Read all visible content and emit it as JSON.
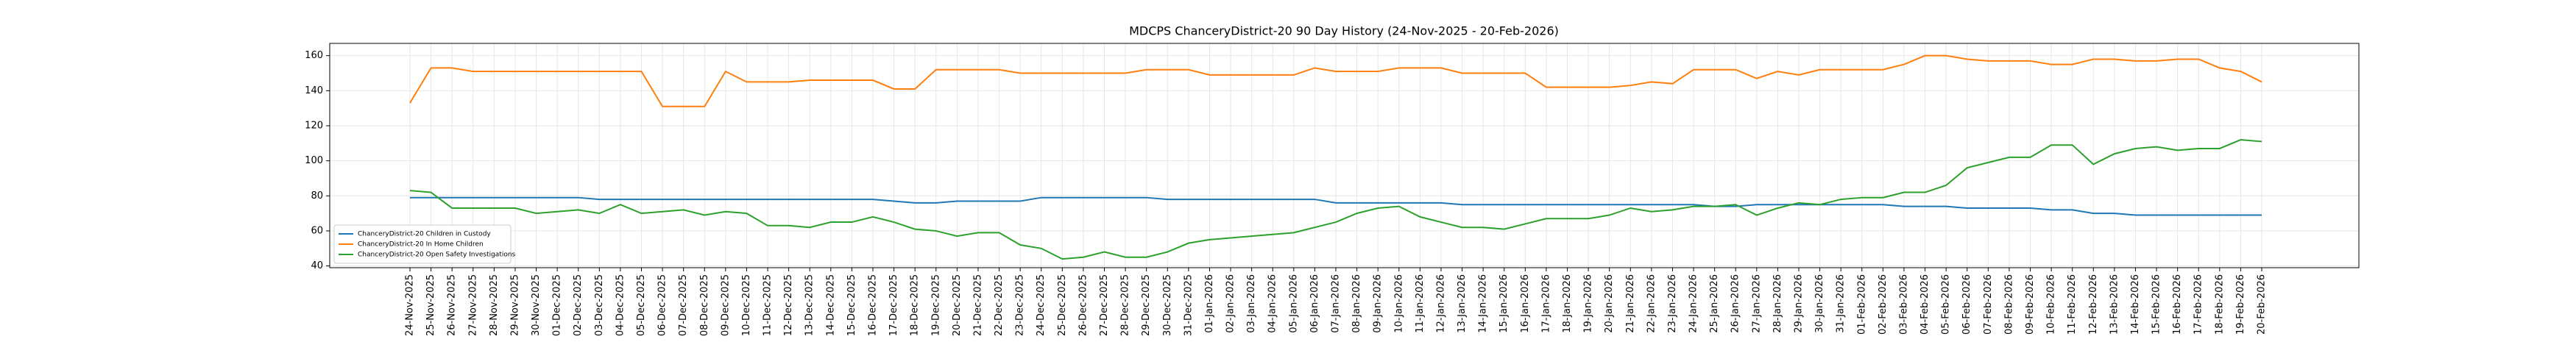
{
  "chart_data": {
    "type": "line",
    "title": "MDCPS ChanceryDistrict-20 90 Day History (24-Nov-2025 - 20-Feb-2026)",
    "categories": [
      "24-Nov-2025",
      "25-Nov-2025",
      "26-Nov-2025",
      "27-Nov-2025",
      "28-Nov-2025",
      "29-Nov-2025",
      "30-Nov-2025",
      "01-Dec-2025",
      "02-Dec-2025",
      "03-Dec-2025",
      "04-Dec-2025",
      "05-Dec-2025",
      "06-Dec-2025",
      "07-Dec-2025",
      "08-Dec-2025",
      "09-Dec-2025",
      "10-Dec-2025",
      "11-Dec-2025",
      "12-Dec-2025",
      "13-Dec-2025",
      "14-Dec-2025",
      "15-Dec-2025",
      "16-Dec-2025",
      "17-Dec-2025",
      "18-Dec-2025",
      "19-Dec-2025",
      "20-Dec-2025",
      "21-Dec-2025",
      "22-Dec-2025",
      "23-Dec-2025",
      "24-Dec-2025",
      "25-Dec-2025",
      "26-Dec-2025",
      "27-Dec-2025",
      "28-Dec-2025",
      "29-Dec-2025",
      "30-Dec-2025",
      "31-Dec-2025",
      "01-Jan-2026",
      "02-Jan-2026",
      "03-Jan-2026",
      "04-Jan-2026",
      "05-Jan-2026",
      "06-Jan-2026",
      "07-Jan-2026",
      "08-Jan-2026",
      "09-Jan-2026",
      "10-Jan-2026",
      "11-Jan-2026",
      "12-Jan-2026",
      "13-Jan-2026",
      "14-Jan-2026",
      "15-Jan-2026",
      "16-Jan-2026",
      "17-Jan-2026",
      "18-Jan-2026",
      "19-Jan-2026",
      "20-Jan-2026",
      "21-Jan-2026",
      "22-Jan-2026",
      "23-Jan-2026",
      "24-Jan-2026",
      "25-Jan-2026",
      "26-Jan-2026",
      "27-Jan-2026",
      "28-Jan-2026",
      "29-Jan-2026",
      "30-Jan-2026",
      "31-Jan-2026",
      "01-Feb-2026",
      "02-Feb-2026",
      "03-Feb-2026",
      "04-Feb-2026",
      "05-Feb-2026",
      "06-Feb-2026",
      "07-Feb-2026",
      "08-Feb-2026",
      "09-Feb-2026",
      "10-Feb-2026",
      "11-Feb-2026",
      "12-Feb-2026",
      "13-Feb-2026",
      "14-Feb-2026",
      "15-Feb-2026",
      "16-Feb-2026",
      "17-Feb-2026",
      "18-Feb-2026",
      "19-Feb-2026",
      "20-Feb-2026"
    ],
    "series": [
      {
        "name": "ChanceryDistrict-20 Children in Custody",
        "color": "#1f77b4",
        "values": [
          79,
          79,
          79,
          79,
          79,
          79,
          79,
          79,
          79,
          78,
          78,
          78,
          78,
          78,
          78,
          78,
          78,
          78,
          78,
          78,
          78,
          78,
          78,
          77,
          76,
          76,
          77,
          77,
          77,
          77,
          79,
          79,
          79,
          79,
          79,
          79,
          78,
          78,
          78,
          78,
          78,
          78,
          78,
          78,
          76,
          76,
          76,
          76,
          76,
          76,
          75,
          75,
          75,
          75,
          75,
          75,
          75,
          75,
          75,
          75,
          75,
          75,
          74,
          74,
          75,
          75,
          75,
          75,
          75,
          75,
          75,
          74,
          74,
          74,
          73,
          73,
          73,
          73,
          72,
          72,
          70,
          70,
          69,
          69,
          69,
          69,
          69,
          69,
          69
        ]
      },
      {
        "name": "ChanceryDistrict-20 In Home Children",
        "color": "#ff7f0e",
        "values": [
          133,
          153,
          153,
          151,
          151,
          151,
          151,
          151,
          151,
          151,
          151,
          151,
          131,
          131,
          131,
          151,
          145,
          145,
          145,
          146,
          146,
          146,
          146,
          141,
          141,
          152,
          152,
          152,
          152,
          150,
          150,
          150,
          150,
          150,
          150,
          152,
          152,
          152,
          149,
          149,
          149,
          149,
          149,
          153,
          151,
          151,
          151,
          153,
          153,
          153,
          150,
          150,
          150,
          150,
          142,
          142,
          142,
          142,
          143,
          145,
          144,
          152,
          152,
          152,
          147,
          151,
          149,
          152,
          152,
          152,
          152,
          155,
          160,
          160,
          158,
          157,
          157,
          157,
          155,
          155,
          158,
          158,
          157,
          157,
          158,
          158,
          153,
          151,
          145
        ]
      },
      {
        "name": "ChanceryDistrict-20 Open Safety Investigations",
        "color": "#2ca02c",
        "values": [
          83,
          82,
          73,
          73,
          73,
          73,
          70,
          71,
          72,
          70,
          75,
          70,
          71,
          72,
          69,
          71,
          70,
          63,
          63,
          62,
          65,
          65,
          68,
          65,
          61,
          60,
          57,
          59,
          59,
          52,
          50,
          44,
          45,
          48,
          45,
          45,
          48,
          53,
          55,
          56,
          57,
          58,
          59,
          62,
          65,
          70,
          73,
          74,
          68,
          65,
          62,
          62,
          61,
          64,
          67,
          67,
          67,
          69,
          73,
          71,
          72,
          74,
          74,
          75,
          69,
          73,
          76,
          75,
          78,
          79,
          79,
          82,
          82,
          86,
          96,
          99,
          102,
          102,
          109,
          109,
          98,
          104,
          107,
          108,
          106,
          107,
          107,
          112,
          111
        ]
      }
    ],
    "ylim": [
      39,
      167
    ],
    "yticks": [
      40,
      60,
      80,
      100,
      120,
      140,
      160
    ],
    "grid": true,
    "legend": "lower left"
  }
}
